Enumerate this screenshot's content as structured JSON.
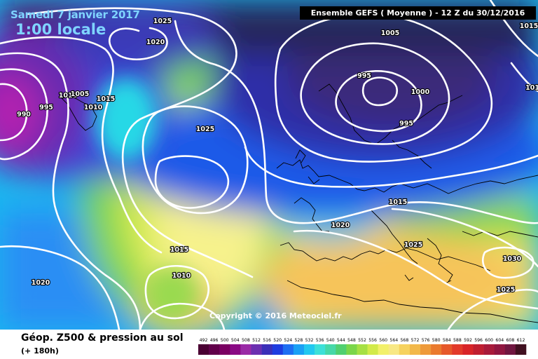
{
  "header": {
    "date": "Samedi 7 janvier 2017",
    "local_time": "1:00 locale",
    "model_run": "Ensemble GEFS  ( Moyenne )  -  12 Z du 30/12/2016"
  },
  "copyright": "Copyright © 2016 Meteociel.fr",
  "footer": {
    "parameter": "Géop. Z500 & pression au sol",
    "lead_time": "(+ 180h)"
  },
  "isobar_labels": [
    "1025",
    "1020",
    "1005",
    "1015",
    "995",
    "1000",
    "995",
    "990",
    "995",
    "1010",
    "1005",
    "1010",
    "1015",
    "1025",
    "1015",
    "1020",
    "1025",
    "1015",
    "1010",
    "1020",
    "1030",
    "1025",
    "101",
    "1015"
  ],
  "legend": {
    "values": [
      492,
      496,
      500,
      504,
      508,
      512,
      516,
      520,
      524,
      528,
      532,
      536,
      540,
      544,
      548,
      552,
      556,
      560,
      564,
      568,
      572,
      576,
      580,
      584,
      588,
      592,
      596,
      600,
      604,
      608,
      612
    ],
    "colors": [
      "#4a0033",
      "#62004a",
      "#7a0062",
      "#8a0a84",
      "#9a2aa6",
      "#6b2fb0",
      "#3b2fb8",
      "#1e3ce0",
      "#1e6ef2",
      "#1aa0f5",
      "#22c8f0",
      "#3de0d8",
      "#46d8a8",
      "#50d070",
      "#7ad64a",
      "#a6e044",
      "#d2ea4a",
      "#f2f06a",
      "#f8e884",
      "#f6d25e",
      "#f2b84a",
      "#ee9a3a",
      "#ea7a2e",
      "#e6582a",
      "#e23a2a",
      "#d82428",
      "#c01e30",
      "#a81a3a",
      "#901640",
      "#701640",
      "#401020"
    ]
  }
}
